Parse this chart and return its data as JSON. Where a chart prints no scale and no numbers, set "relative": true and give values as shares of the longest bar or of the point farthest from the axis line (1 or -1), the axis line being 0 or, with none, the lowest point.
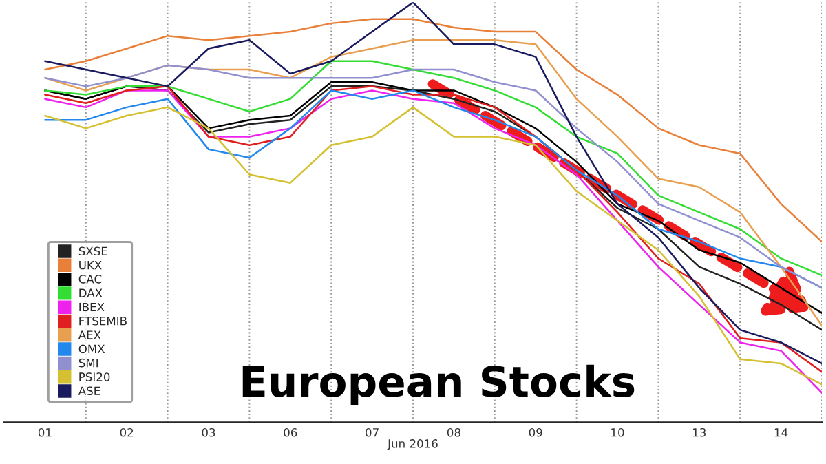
{
  "chart_data": {
    "type": "line",
    "title": "European Stocks",
    "xlabel": "Jun 2016",
    "relative": true,
    "grid": "x",
    "legend": "bottom left",
    "line_style": "solid",
    "marker": "none",
    "categories": [
      "01",
      null,
      "02",
      null,
      "03",
      null,
      "06",
      null,
      "07",
      null,
      "08",
      null,
      "09",
      null,
      "10",
      null,
      "13",
      null,
      "14",
      null
    ],
    "series": [
      {
        "name": "SXSE",
        "color": "#222222",
        "values": [
          0.79,
          0.77,
          0.8,
          0.79,
          0.69,
          0.71,
          0.72,
          0.8,
          0.8,
          0.79,
          0.77,
          0.74,
          0.68,
          0.6,
          0.51,
          0.46,
          0.37,
          0.33,
          0.28,
          0.22
        ]
      },
      {
        "name": "UKX",
        "color": "#e8803a",
        "values": [
          0.84,
          0.86,
          0.89,
          0.92,
          0.91,
          0.92,
          0.93,
          0.95,
          0.96,
          0.96,
          0.94,
          0.93,
          0.93,
          0.84,
          0.78,
          0.7,
          0.66,
          0.64,
          0.52,
          0.43
        ]
      },
      {
        "name": "CAC",
        "color": "#000000",
        "values": [
          0.79,
          0.77,
          0.8,
          0.8,
          0.7,
          0.72,
          0.73,
          0.81,
          0.81,
          0.79,
          0.79,
          0.75,
          0.7,
          0.62,
          0.52,
          0.48,
          0.41,
          0.38,
          0.32,
          0.26
        ]
      },
      {
        "name": "DAX",
        "color": "#33dd33",
        "values": [
          0.79,
          0.78,
          0.8,
          0.8,
          0.77,
          0.74,
          0.77,
          0.86,
          0.86,
          0.84,
          0.82,
          0.79,
          0.75,
          0.68,
          0.64,
          0.54,
          0.5,
          0.46,
          0.39,
          0.35
        ]
      },
      {
        "name": "IBEX",
        "color": "#ee22ee",
        "values": [
          0.77,
          0.75,
          0.79,
          0.79,
          0.68,
          0.68,
          0.7,
          0.77,
          0.79,
          0.77,
          0.76,
          0.7,
          0.66,
          0.59,
          0.48,
          0.37,
          0.28,
          0.19,
          0.17,
          0.07
        ]
      },
      {
        "name": "FTSEMIB",
        "color": "#e02020",
        "values": [
          0.78,
          0.76,
          0.79,
          0.8,
          0.68,
          0.66,
          0.68,
          0.79,
          0.8,
          0.78,
          0.78,
          0.75,
          0.68,
          0.6,
          0.5,
          0.39,
          0.33,
          0.2,
          0.19,
          0.12
        ]
      },
      {
        "name": "AEX",
        "color": "#e8a050",
        "values": [
          0.82,
          0.79,
          0.82,
          0.85,
          0.84,
          0.84,
          0.82,
          0.87,
          0.89,
          0.91,
          0.91,
          0.91,
          0.9,
          0.77,
          0.68,
          0.58,
          0.56,
          0.5,
          0.37,
          0.23
        ]
      },
      {
        "name": "OMX",
        "color": "#2288ee",
        "values": [
          0.72,
          0.72,
          0.75,
          0.77,
          0.65,
          0.63,
          0.7,
          0.79,
          0.77,
          0.79,
          0.75,
          0.72,
          0.68,
          0.6,
          0.54,
          0.46,
          0.43,
          0.39,
          0.37,
          0.32
        ]
      },
      {
        "name": "SMI",
        "color": "#9090d0",
        "values": [
          0.82,
          0.8,
          0.82,
          0.85,
          0.84,
          0.82,
          0.82,
          0.82,
          0.82,
          0.84,
          0.84,
          0.81,
          0.79,
          0.7,
          0.62,
          0.52,
          0.48,
          0.44,
          0.37,
          0.32
        ]
      },
      {
        "name": "PSI20",
        "color": "#d4c030",
        "values": [
          0.73,
          0.7,
          0.73,
          0.75,
          0.7,
          0.59,
          0.57,
          0.66,
          0.68,
          0.75,
          0.68,
          0.68,
          0.66,
          0.55,
          0.48,
          0.41,
          0.3,
          0.15,
          0.14,
          0.09
        ]
      },
      {
        "name": "ASE",
        "color": "#1a1a5e",
        "values": [
          0.86,
          0.84,
          0.82,
          0.8,
          0.89,
          0.91,
          0.83,
          0.86,
          0.93,
          1.0,
          0.9,
          0.9,
          0.87,
          0.68,
          0.52,
          0.44,
          0.32,
          0.22,
          0.19,
          0.14
        ]
      }
    ]
  }
}
